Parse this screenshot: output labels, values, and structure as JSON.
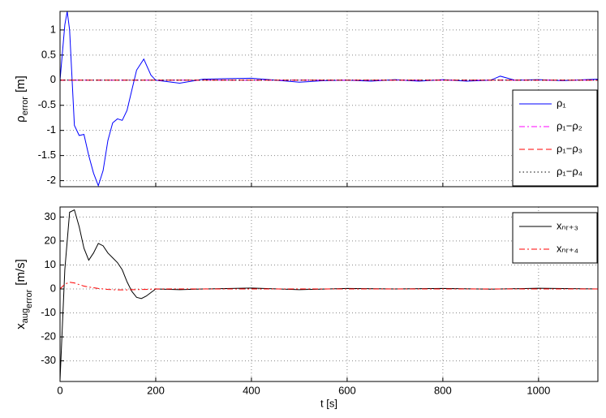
{
  "chart_data": [
    {
      "type": "line",
      "ylabel": [
        "ρ",
        "error",
        "[m]"
      ],
      "x": [
        0,
        10,
        15,
        20,
        30,
        40,
        50,
        60,
        70,
        80,
        90,
        100,
        110,
        120,
        130,
        140,
        150,
        160,
        175,
        190,
        200,
        250,
        300,
        350,
        400,
        450,
        500,
        550,
        600,
        650,
        700,
        750,
        800,
        850,
        900,
        920,
        950,
        1000,
        1050,
        1124
      ],
      "series": [
        {
          "name": "ρ₁",
          "color": "#0000ff",
          "linestyle": "solid",
          "values": [
            0,
            1.1,
            1.37,
            1.0,
            -0.9,
            -1.1,
            -1.08,
            -1.5,
            -1.85,
            -2.1,
            -1.8,
            -1.2,
            -0.85,
            -0.77,
            -0.8,
            -0.6,
            -0.2,
            0.2,
            0.42,
            0.1,
            0.0,
            -0.06,
            0.02,
            0.03,
            0.04,
            0.0,
            -0.04,
            -0.01,
            0.0,
            -0.02,
            0.01,
            -0.02,
            0.01,
            -0.02,
            0.0,
            0.08,
            0.0,
            0.01,
            -0.01,
            0.02
          ]
        },
        {
          "name": "ρ₁−ρ₂",
          "color": "#ff00ff",
          "linestyle": "dashdot",
          "values": [
            0,
            0,
            0,
            0,
            0,
            0,
            0,
            0,
            0,
            0,
            0,
            0,
            0,
            0,
            0,
            0,
            0,
            0,
            0,
            0,
            0,
            0,
            0,
            0,
            0,
            0,
            0,
            0,
            0,
            0,
            0,
            0,
            0,
            0,
            0,
            0,
            0,
            0,
            0,
            0
          ]
        },
        {
          "name": "ρ₁−ρ₃",
          "color": "#ff0000",
          "linestyle": "dashed",
          "values": [
            0,
            0,
            0,
            0,
            0,
            0,
            0,
            0,
            0,
            0,
            0,
            0,
            0,
            0,
            0,
            0,
            0,
            0,
            0,
            0,
            0,
            0,
            0,
            0,
            0,
            0,
            0,
            0,
            0,
            0,
            0,
            0,
            0,
            0,
            0,
            0,
            0,
            0,
            0,
            0
          ]
        },
        {
          "name": "ρ₁−ρ₄",
          "color": "#000000",
          "linestyle": "dotted",
          "values": [
            0,
            0,
            0,
            0,
            0,
            0,
            0,
            0,
            0,
            0,
            0,
            0,
            0,
            0,
            0,
            0,
            0,
            0,
            0,
            0,
            0,
            0,
            0,
            0,
            0,
            0,
            0,
            0,
            0,
            0,
            0,
            0,
            0,
            0,
            0,
            0,
            0,
            0,
            0,
            0
          ]
        }
      ],
      "xlim": [
        0,
        1124
      ],
      "xticks": [
        0,
        200,
        400,
        600,
        800,
        1000
      ],
      "show_xtick_labels": false,
      "ylim": [
        -2.12,
        1.37
      ],
      "yticks": [
        -2,
        -1.5,
        -1,
        -0.5,
        0,
        0.5,
        1
      ],
      "grid": true,
      "legend": "lower right"
    },
    {
      "type": "line",
      "ylabel": [
        "x",
        "aug",
        "error",
        "[m/s]"
      ],
      "xlabel": "t [s]",
      "x": [
        0,
        10,
        20,
        30,
        40,
        50,
        60,
        70,
        80,
        90,
        100,
        110,
        120,
        130,
        140,
        150,
        160,
        170,
        180,
        200,
        250,
        300,
        400,
        500,
        600,
        700,
        800,
        900,
        1000,
        1124
      ],
      "series": [
        {
          "name": "xₙᵣ₊₃",
          "color": "#000000",
          "linestyle": "solid",
          "values": [
            -38,
            8,
            32,
            33,
            26,
            17,
            12,
            15,
            19,
            18,
            15,
            13,
            11,
            8,
            3,
            -1,
            -3.5,
            -4,
            -3,
            0,
            -0.3,
            0,
            0.4,
            -0.3,
            0.2,
            0,
            0.2,
            -0.1,
            0.3,
            0
          ]
        },
        {
          "name": "xₙᵣ₊₄",
          "color": "#ff0000",
          "linestyle": "dashdot",
          "values": [
            0,
            2,
            2.8,
            2.5,
            1.8,
            1.2,
            0.8,
            0.5,
            0.2,
            0,
            -0.2,
            -0.3,
            -0.4,
            -0.4,
            -0.4,
            -0.3,
            -0.3,
            -0.2,
            -0.2,
            0,
            0,
            0,
            0,
            0,
            0,
            0,
            0,
            0,
            0,
            0
          ]
        }
      ],
      "xlim": [
        0,
        1124
      ],
      "xticks": [
        0,
        200,
        400,
        600,
        800,
        1000
      ],
      "show_xtick_labels": true,
      "ylim": [
        -38.6,
        34.2
      ],
      "yticks": [
        -30,
        -20,
        -10,
        0,
        10,
        20,
        30
      ],
      "grid": true,
      "legend": "upper right"
    }
  ]
}
